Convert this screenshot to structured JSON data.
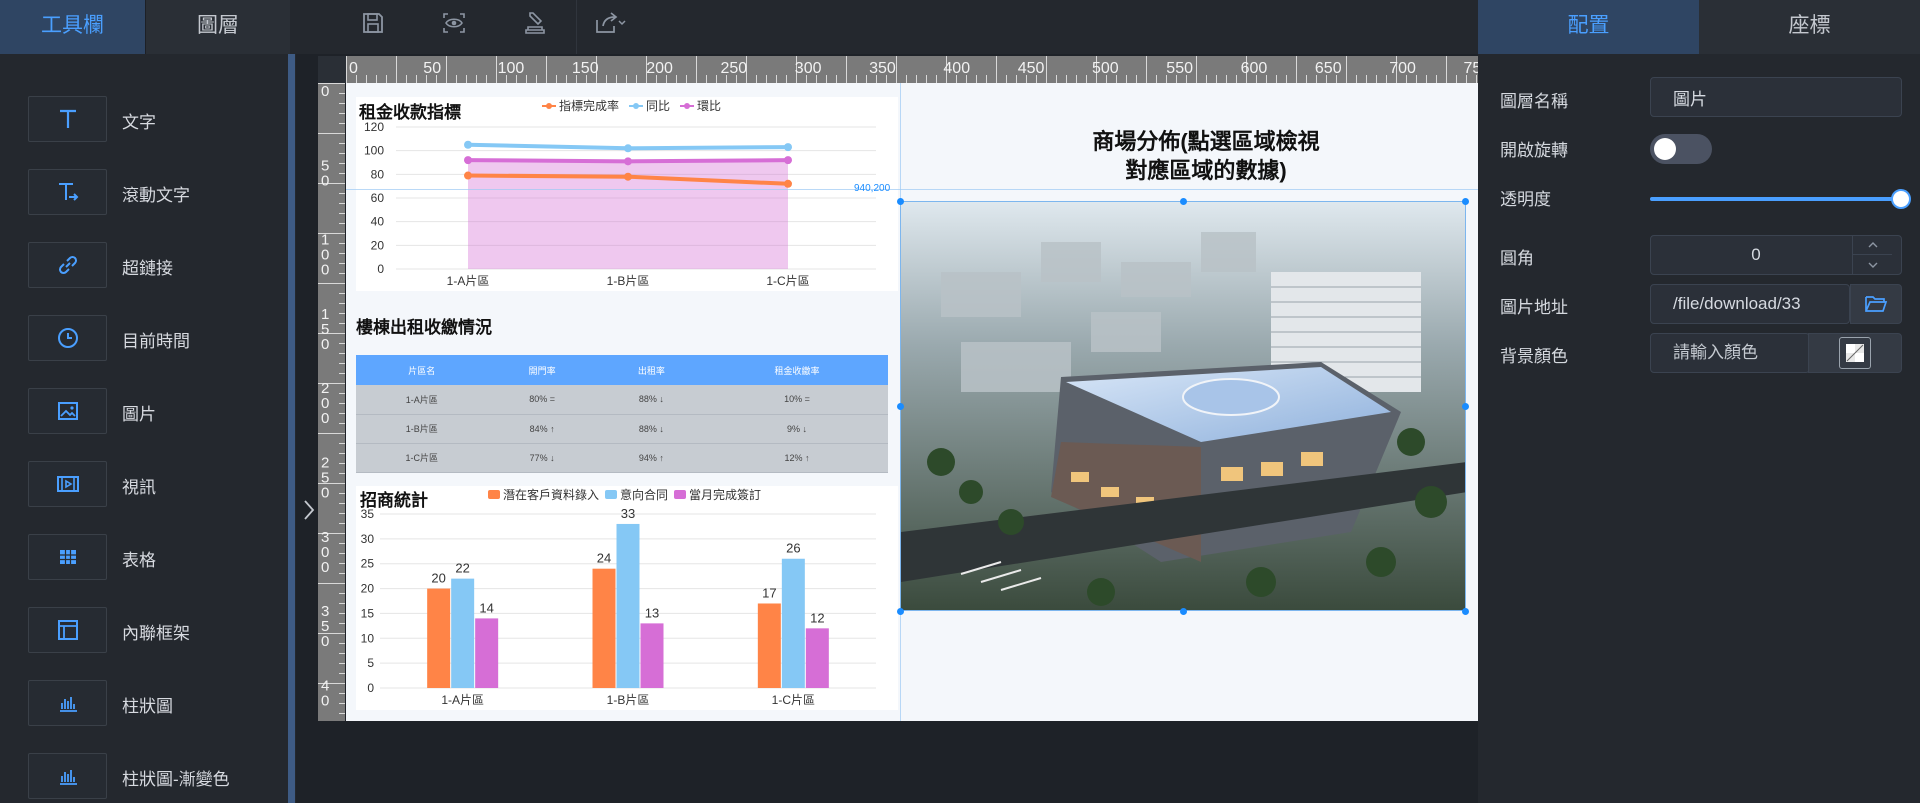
{
  "left_panel": {
    "tabs": [
      {
        "label": "工具欄",
        "active": true
      },
      {
        "label": "圖層",
        "active": false
      }
    ],
    "tools": [
      {
        "label": "文字",
        "icon": "text-icon"
      },
      {
        "label": "滾動文字",
        "icon": "scrolling-text-icon"
      },
      {
        "label": "超鏈接",
        "icon": "link-icon"
      },
      {
        "label": "目前時間",
        "icon": "clock-icon"
      },
      {
        "label": "圖片",
        "icon": "image-icon"
      },
      {
        "label": "視訊",
        "icon": "video-icon"
      },
      {
        "label": "表格",
        "icon": "table-icon"
      },
      {
        "label": "內聯框架",
        "icon": "iframe-icon"
      },
      {
        "label": "柱狀圖",
        "icon": "bar-chart-icon"
      },
      {
        "label": "柱狀圖-漸變色",
        "icon": "gradient-bar-chart-icon"
      }
    ]
  },
  "toolbar": {
    "buttons": [
      "save-icon",
      "preview-icon",
      "stamp-icon",
      "share-icon"
    ]
  },
  "right_panel": {
    "tabs": [
      {
        "label": "配置",
        "active": true
      },
      {
        "label": "座標",
        "active": false
      }
    ],
    "props": {
      "layer_name_label": "圖層名稱",
      "layer_name_value": "圖片",
      "rotate_label": "開啟旋轉",
      "rotate_on": false,
      "opacity_label": "透明度",
      "opacity_value": 1,
      "corner_label": "圓角",
      "corner_value": "0",
      "image_url_label": "圖片地址",
      "image_url_value": "/file/download/33",
      "bg_color_label": "背景顏色",
      "bg_color_placeholder": "請輸入顏色"
    }
  },
  "ruler": {
    "top_labels": [
      "0",
      "50",
      "100",
      "150",
      "200",
      "250",
      "300",
      "350",
      "400",
      "450",
      "500",
      "550",
      "600",
      "650",
      "700",
      "75"
    ],
    "left_labels": [
      "0",
      "5 0",
      "1 0 0",
      "1 5 0",
      "2 0 0",
      "2 5 0",
      "3 0 0",
      "3 5 0",
      "4 0"
    ]
  },
  "canvas": {
    "coord_label": "940,200",
    "map_title": "商場分佈(點選區域檢視對應區域的數據)",
    "colors": {
      "orange": "#ff8447",
      "blue": "#85c8f5",
      "purple": "#d66ed6",
      "header_blue": "#5ea6ff"
    }
  },
  "rent_chart": {
    "title": "租金收款指標",
    "chart_data": {
      "type": "line",
      "categories": [
        "1-A片區",
        "1-B片區",
        "1-C片區"
      ],
      "series": [
        {
          "name": "指標完成率",
          "values": [
            79,
            78,
            72
          ],
          "color": "#ff8447"
        },
        {
          "name": "同比",
          "values": [
            105,
            102,
            103
          ],
          "color": "#85c8f5"
        },
        {
          "name": "環比",
          "values": [
            92,
            91,
            92
          ],
          "color": "#d66ed6"
        }
      ],
      "ylim": [
        0,
        120
      ],
      "yticks": [
        0,
        20,
        40,
        60,
        80,
        100,
        120
      ],
      "grid": true,
      "legend": "top"
    }
  },
  "rent_table": {
    "title": "樓棟出租收繳情況",
    "headers": [
      "片區名",
      "開門率",
      "出租率",
      "租金收繳率"
    ],
    "rows": [
      [
        "1-A片區",
        "80% =",
        "88% ↓",
        "10% ="
      ],
      [
        "1-B片區",
        "84% ↑",
        "88% ↓",
        "9% ↓"
      ],
      [
        "1-C片區",
        "77% ↓",
        "94% ↑",
        "12% ↑"
      ]
    ]
  },
  "leasing_chart": {
    "title": "招商統計",
    "chart_data": {
      "type": "bar",
      "categories": [
        "1-A片區",
        "1-B片區",
        "1-C片區"
      ],
      "series": [
        {
          "name": "潛在客戶資料錄入",
          "values": [
            20,
            24,
            17
          ],
          "color": "#ff8447"
        },
        {
          "name": "意向合同",
          "values": [
            22,
            33,
            26
          ],
          "color": "#85c8f5"
        },
        {
          "name": "當月完成簽訂",
          "values": [
            14,
            13,
            12
          ],
          "color": "#d66ed6"
        }
      ],
      "ylim": [
        0,
        35
      ],
      "yticks": [
        0,
        5,
        10,
        15,
        20,
        25,
        30,
        35
      ],
      "grid": true,
      "legend": "top"
    }
  }
}
